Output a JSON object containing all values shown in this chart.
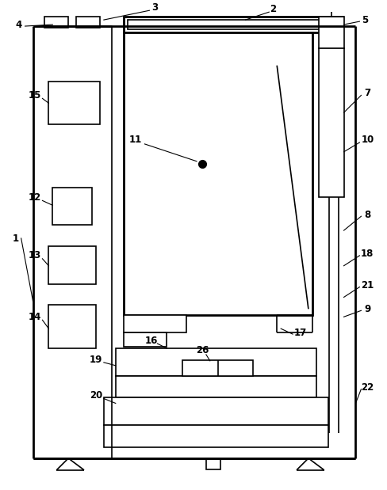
{
  "bg_color": "#ffffff",
  "lc": "#000000",
  "lw": 1.2,
  "lw2": 2.0,
  "fig_w": 4.89,
  "fig_h": 6.19,
  "dpi": 100
}
